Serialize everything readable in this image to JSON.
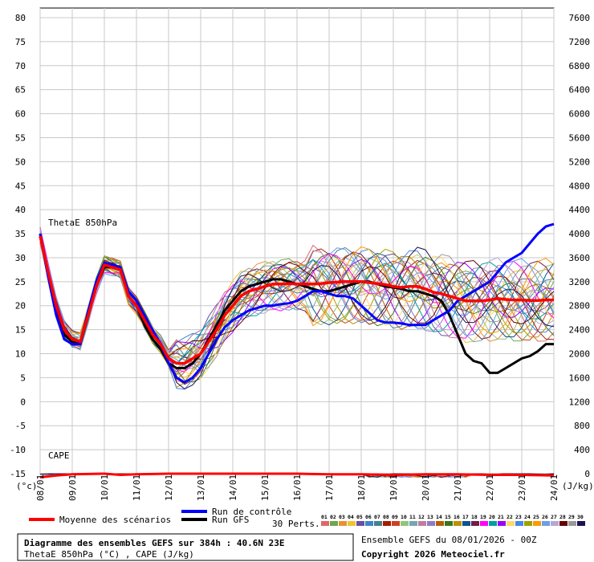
{
  "chart_data": {
    "type": "line",
    "title": "Diagramme des ensembles GEFS sur 384h : 40.6N 23E",
    "subtitle": "ThetaE 850hPa (°C) , CAPE (J/kg)",
    "run_info": "Ensemble GEFS du 08/01/2026 - 00Z",
    "copyright": "Copyright 2026 Meteociel.fr",
    "left_unit": "(°c)",
    "right_unit": "(J/kg)",
    "panel_label_thetae": "ThetaE 850hPa",
    "panel_label_cape": "CAPE",
    "x_days": [
      "08/01",
      "09/01",
      "10/01",
      "11/01",
      "12/01",
      "13/01",
      "14/01",
      "15/01",
      "16/01",
      "17/01",
      "18/01",
      "19/01",
      "20/01",
      "21/01",
      "22/01",
      "23/01",
      "24/01"
    ],
    "x_range_hours": [
      0,
      384
    ],
    "left_axis": {
      "ticks": [
        80,
        75,
        70,
        65,
        60,
        55,
        50,
        45,
        40,
        35,
        30,
        25,
        20,
        15,
        10,
        5,
        0,
        -5,
        -10,
        -15
      ],
      "range": [
        -15,
        80
      ]
    },
    "right_axis": {
      "ticks": [
        7600,
        7200,
        6800,
        6400,
        6000,
        5600,
        5200,
        4800,
        4400,
        4000,
        3600,
        3200,
        2800,
        2400,
        2000,
        1600,
        1200,
        800,
        400,
        0
      ]
    },
    "grid": true,
    "legend": {
      "mean_label": "Moyenne des scénarios",
      "control_label": "Run de contrôle",
      "gfs_label": "Run GFS",
      "perts_label": "30 Perts.",
      "pert_numbers": [
        "01",
        "02",
        "03",
        "04",
        "05",
        "06",
        "07",
        "08",
        "09",
        "10",
        "11",
        "12",
        "13",
        "14",
        "15",
        "16",
        "17",
        "18",
        "19",
        "20",
        "21",
        "22",
        "23",
        "24",
        "25",
        "26",
        "27",
        "28",
        "29",
        "30"
      ],
      "pert_colors": [
        "#e06666",
        "#6aa84f",
        "#e69138",
        "#f1c232",
        "#674ea7",
        "#3d85c6",
        "#45818e",
        "#a61c00",
        "#cc4125",
        "#93c47d",
        "#76a5af",
        "#c27ba0",
        "#8e7cc3",
        "#b45f06",
        "#38761d",
        "#bf9000",
        "#0b5394",
        "#741b47",
        "#ff00ff",
        "#00a0a0",
        "#9900ff",
        "#ffd966",
        "#4a86e8",
        "#a0a000",
        "#ff9900",
        "#6d9eeb",
        "#b4a7d6",
        "#660000",
        "#999999",
        "#20124d"
      ]
    },
    "series": [
      {
        "name": "Moyenne des scénarios",
        "color": "#ff0000",
        "x": [
          0,
          6,
          12,
          18,
          24,
          30,
          36,
          42,
          48,
          54,
          60,
          66,
          72,
          78,
          84,
          90,
          96,
          102,
          108,
          114,
          120,
          126,
          132,
          138,
          144,
          150,
          156,
          162,
          168,
          174,
          180,
          186,
          192,
          198,
          204,
          210,
          216,
          222,
          228,
          234,
          240,
          246,
          252,
          258,
          264,
          270,
          276,
          282,
          288,
          294,
          300,
          306,
          312,
          318,
          324,
          330,
          336,
          342,
          348,
          354,
          360,
          366,
          372,
          378,
          384
        ],
        "y": [
          34.5,
          27,
          20,
          15,
          13,
          12.5,
          18,
          24,
          28.5,
          28,
          27.5,
          22,
          20,
          17,
          14,
          12,
          9,
          8,
          8,
          9,
          10,
          12.5,
          15,
          18,
          20,
          22,
          23,
          23.5,
          24,
          24.5,
          24.5,
          24.6,
          24.5,
          24.5,
          24.5,
          24.6,
          24.8,
          24.9,
          25,
          25,
          25,
          24.8,
          24.6,
          24.4,
          24,
          23.8,
          24,
          24,
          23.5,
          22.8,
          22.5,
          22,
          21.5,
          21,
          21,
          21,
          21.2,
          21.5,
          21.3,
          21.2,
          21.2,
          21.1,
          21.1,
          21.2,
          21.2
        ]
      },
      {
        "name": "Run de contrôle",
        "color": "#0000ff",
        "x": [
          0,
          6,
          12,
          18,
          24,
          30,
          36,
          42,
          48,
          54,
          60,
          66,
          72,
          78,
          84,
          90,
          96,
          102,
          108,
          114,
          120,
          126,
          132,
          138,
          144,
          150,
          156,
          162,
          168,
          174,
          180,
          186,
          192,
          198,
          204,
          210,
          216,
          222,
          228,
          234,
          240,
          246,
          252,
          258,
          264,
          270,
          276,
          282,
          288,
          294,
          300,
          306,
          312,
          318,
          324,
          330,
          336,
          342,
          348,
          354,
          360,
          366,
          372,
          378,
          384
        ],
        "y": [
          35,
          26,
          18,
          13,
          12,
          12,
          19,
          25,
          29,
          28.5,
          28,
          23,
          21,
          18,
          15,
          12,
          8,
          5,
          4,
          5,
          7,
          10,
          13,
          15.5,
          17,
          18,
          19,
          19.5,
          20,
          20,
          20.3,
          20.5,
          21,
          22,
          23,
          23,
          22.5,
          22,
          22,
          21.5,
          20,
          18.5,
          17,
          16.5,
          16.5,
          16.3,
          16,
          16,
          16,
          17,
          18,
          19,
          21,
          22,
          23,
          24,
          25,
          27,
          29,
          30,
          31,
          33,
          35,
          36.5,
          37
        ]
      },
      {
        "name": "Run GFS",
        "color": "#000000",
        "x": [
          0,
          6,
          12,
          18,
          24,
          30,
          36,
          42,
          48,
          54,
          60,
          66,
          72,
          78,
          84,
          90,
          96,
          102,
          108,
          114,
          120,
          126,
          132,
          138,
          144,
          150,
          156,
          162,
          168,
          174,
          180,
          186,
          192,
          198,
          204,
          210,
          216,
          222,
          228,
          234,
          240,
          246,
          252,
          258,
          264,
          270,
          276,
          282,
          288,
          294,
          300,
          306,
          312,
          318,
          324,
          330,
          336,
          342,
          348,
          354,
          360,
          366,
          372,
          378,
          384
        ],
        "y": [
          35,
          27,
          19,
          14,
          12.5,
          12,
          18,
          24,
          28,
          28,
          27.5,
          22,
          20,
          16,
          13,
          11,
          8,
          7,
          7,
          8,
          10,
          13,
          16,
          19,
          21,
          23,
          24,
          24.5,
          25,
          25.5,
          25.5,
          25,
          24.5,
          24,
          23.5,
          23,
          23,
          23.5,
          24,
          24.5,
          25,
          25,
          24.5,
          24,
          23.8,
          23.5,
          23,
          23,
          22.5,
          22,
          21,
          18,
          14,
          10,
          8.5,
          8,
          6,
          6,
          7,
          8,
          9,
          9.5,
          10.5,
          12,
          12
        ]
      }
    ],
    "perturbations_thetae": "30 ensemble members, spread approx 0-6 °C above/below mean until day 8, widening to ±8 °C later",
    "cape_series": [
      {
        "name": "Moyenne des scénarios",
        "x": [
          0,
          12,
          24,
          48,
          60,
          72,
          96,
          120,
          144,
          168,
          192,
          216,
          240,
          264,
          288,
          312,
          336,
          360,
          384
        ],
        "y": [
          60,
          30,
          10,
          0,
          20,
          10,
          0,
          0,
          0,
          0,
          0,
          10,
          10,
          20,
          10,
          10,
          20,
          20,
          30
        ]
      }
    ]
  }
}
